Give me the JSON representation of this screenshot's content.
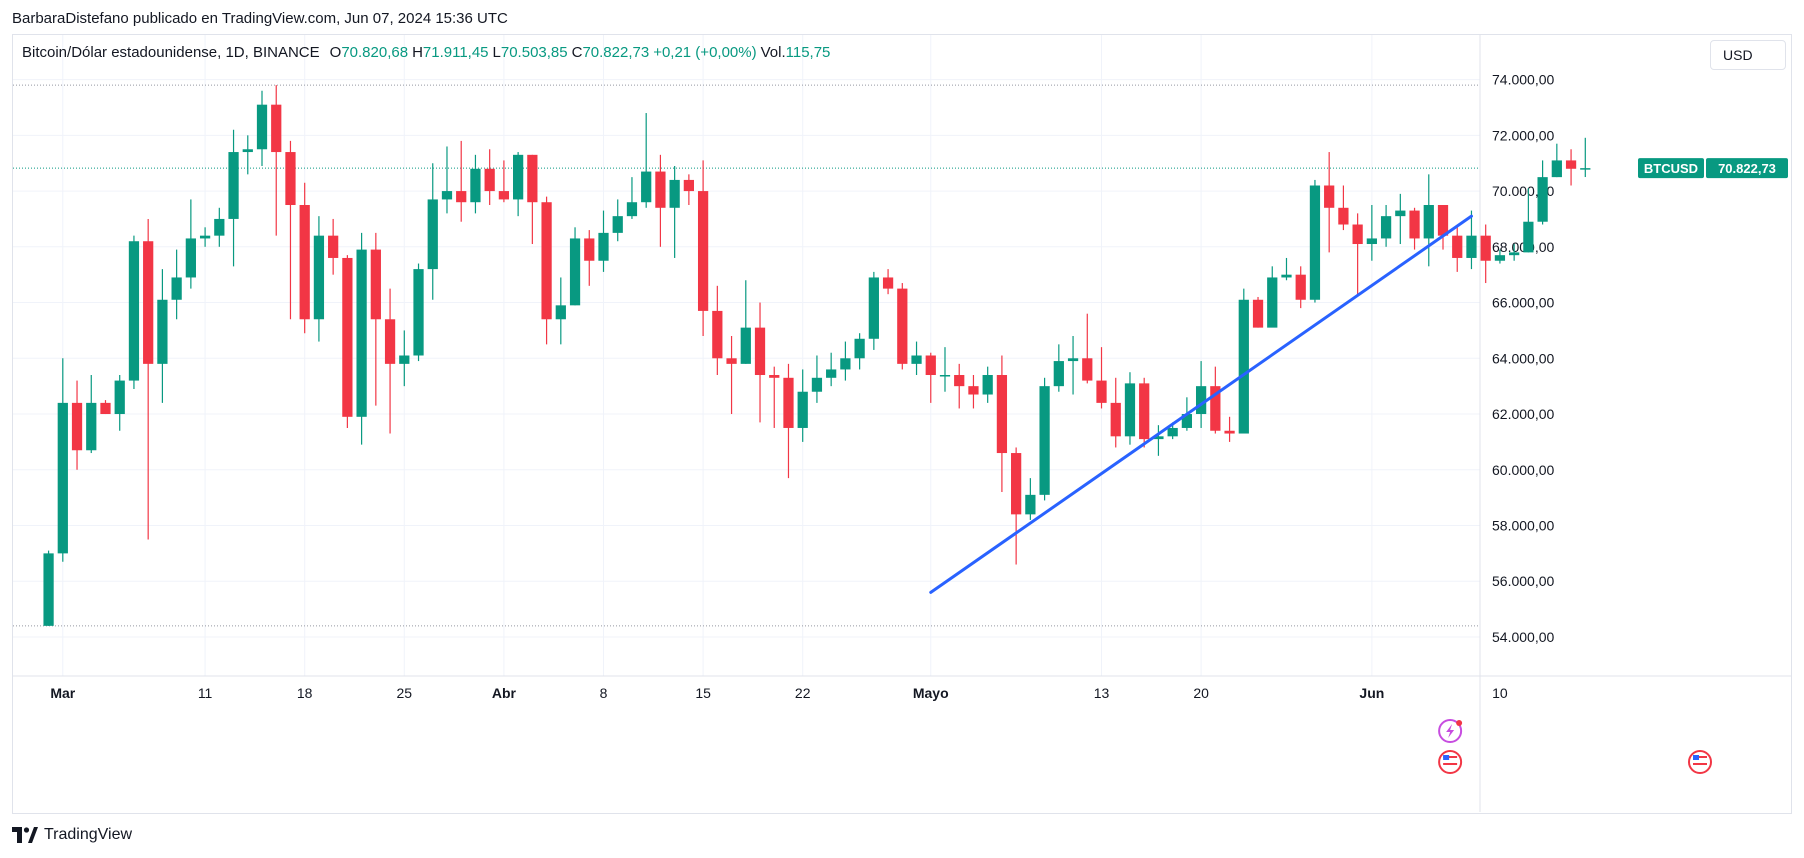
{
  "header": {
    "publish_line": "BarbaraDistefano publicado en TradingView.com, Jun 07, 2024 15:36 UTC"
  },
  "legend": {
    "symbol": "Bitcoin/Dólar estadounidense, 1D, BINANCE",
    "open_label": "O",
    "open_value": "70.820,68",
    "high_label": "H",
    "high_value": "71.911,45",
    "low_label": "L",
    "low_value": "70.503,85",
    "close_label": "C",
    "close_value": "70.822,73",
    "change": "+0,21 (+0,00%)",
    "vol_label": "Vol.",
    "vol_value": "115,75"
  },
  "currency_button": "USD",
  "price_tag": {
    "ticker": "BTCUSD",
    "price": "70.822,73"
  },
  "footer": {
    "brand": "TradingView"
  },
  "colors": {
    "up": "#089981",
    "down": "#f23645",
    "trendline": "#2962ff",
    "grid": "#f0f3fa",
    "text": "#131722"
  },
  "chart_data": {
    "type": "candlestick",
    "ylim": [
      52600,
      75600
    ],
    "x_range_days": [
      -2.5,
      100.6
    ],
    "y_ticks": [
      {
        "value": 74000,
        "label": "74.000,00"
      },
      {
        "value": 72000,
        "label": "72.000,00"
      },
      {
        "value": 70000,
        "label": "70.000,00"
      },
      {
        "value": 68000,
        "label": "68.000,00"
      },
      {
        "value": 66000,
        "label": "66.000,00"
      },
      {
        "value": 64000,
        "label": "64.000,00"
      },
      {
        "value": 62000,
        "label": "62.000,00"
      },
      {
        "value": 60000,
        "label": "60.000,00"
      },
      {
        "value": 58000,
        "label": "58.000,00"
      },
      {
        "value": 56000,
        "label": "56.000,00"
      },
      {
        "value": 54000,
        "label": "54.000,00"
      }
    ],
    "x_ticks": [
      {
        "day": 1,
        "label": "Mar",
        "bold": true
      },
      {
        "day": 11,
        "label": "11",
        "bold": false
      },
      {
        "day": 18,
        "label": "18",
        "bold": false
      },
      {
        "day": 25,
        "label": "25",
        "bold": false
      },
      {
        "day": 32,
        "label": "Abr",
        "bold": true
      },
      {
        "day": 39,
        "label": "8",
        "bold": false
      },
      {
        "day": 46,
        "label": "15",
        "bold": false
      },
      {
        "day": 53,
        "label": "22",
        "bold": false
      },
      {
        "day": 62,
        "label": "Mayo",
        "bold": true
      },
      {
        "day": 74,
        "label": "13",
        "bold": false
      },
      {
        "day": 81,
        "label": "20",
        "bold": false
      },
      {
        "day": 93,
        "label": "Jun",
        "bold": true
      },
      {
        "day": 102,
        "label": "10",
        "bold": false
      }
    ],
    "dotted_levels": [
      73800,
      54400
    ],
    "current_price": 70822.73,
    "trendline": [
      [
        62,
        55600
      ],
      [
        100,
        69100
      ]
    ],
    "candles": [
      [
        54400,
        57000,
        54400,
        57100
      ],
      [
        57000,
        62400,
        56700,
        64000
      ],
      [
        62400,
        60700,
        60000,
        63200
      ],
      [
        60700,
        62400,
        60600,
        63400
      ],
      [
        62400,
        62000,
        62000,
        62500
      ],
      [
        62000,
        63200,
        61400,
        63400
      ],
      [
        63200,
        68200,
        62900,
        68400
      ],
      [
        68200,
        63800,
        57500,
        69000
      ],
      [
        63800,
        66100,
        62400,
        67200
      ],
      [
        66100,
        66900,
        65400,
        67900
      ],
      [
        66900,
        68300,
        66500,
        69700
      ],
      [
        68300,
        68400,
        68000,
        68700
      ],
      [
        68400,
        69000,
        68000,
        69400
      ],
      [
        69000,
        71400,
        67300,
        72200
      ],
      [
        71400,
        71500,
        70600,
        72000
      ],
      [
        71500,
        73100,
        70900,
        73600
      ],
      [
        73100,
        71400,
        68400,
        73800
      ],
      [
        71400,
        69500,
        65400,
        71800
      ],
      [
        69500,
        65400,
        64900,
        70300
      ],
      [
        65400,
        68400,
        64600,
        69100
      ],
      [
        68400,
        67600,
        67000,
        69000
      ],
      [
        67600,
        61900,
        61500,
        67700
      ],
      [
        61900,
        67900,
        60900,
        68500
      ],
      [
        67900,
        65400,
        62300,
        68500
      ],
      [
        65400,
        63800,
        61300,
        66500
      ],
      [
        63800,
        64100,
        63000,
        65000
      ],
      [
        64100,
        67200,
        63900,
        67400
      ],
      [
        67200,
        69700,
        66100,
        71000
      ],
      [
        69700,
        70000,
        69200,
        71600
      ],
      [
        70000,
        69600,
        68900,
        71800
      ],
      [
        69600,
        70800,
        69200,
        71300
      ],
      [
        70800,
        70000,
        69500,
        71500
      ],
      [
        70000,
        69700,
        69600,
        71100
      ],
      [
        69700,
        71300,
        69100,
        71400
      ],
      [
        71300,
        69600,
        68100,
        71300
      ],
      [
        69600,
        65400,
        64500,
        69800
      ],
      [
        65400,
        65900,
        64500,
        66900
      ],
      [
        65900,
        68300,
        65900,
        68700
      ],
      [
        68300,
        67500,
        66600,
        68600
      ],
      [
        67500,
        68500,
        67100,
        69300
      ],
      [
        68500,
        69100,
        68200,
        69700
      ],
      [
        69100,
        69600,
        69000,
        70500
      ],
      [
        69600,
        70700,
        69400,
        72800
      ],
      [
        70700,
        69400,
        68000,
        71300
      ],
      [
        69400,
        70400,
        67600,
        70900
      ],
      [
        70400,
        70000,
        69500,
        70600
      ],
      [
        70000,
        65700,
        64800,
        71100
      ],
      [
        65700,
        64000,
        63400,
        66600
      ],
      [
        64000,
        63800,
        62000,
        64800
      ],
      [
        63800,
        65100,
        63800,
        66800
      ],
      [
        65100,
        63400,
        61700,
        66000
      ],
      [
        63400,
        63300,
        61500,
        63700
      ],
      [
        63300,
        61500,
        59700,
        63800
      ],
      [
        61500,
        62800,
        61000,
        63600
      ],
      [
        62800,
        63300,
        62400,
        64100
      ],
      [
        63300,
        63600,
        63000,
        64200
      ],
      [
        63600,
        64000,
        63200,
        64600
      ],
      [
        64000,
        64700,
        63600,
        64900
      ],
      [
        64700,
        66900,
        64300,
        67100
      ],
      [
        66900,
        66500,
        66300,
        67200
      ],
      [
        66500,
        63800,
        63600,
        66700
      ],
      [
        63800,
        64100,
        63400,
        64600
      ],
      [
        64100,
        63400,
        62400,
        64200
      ],
      [
        63400,
        63400,
        62800,
        64400
      ],
      [
        63400,
        63000,
        62200,
        63800
      ],
      [
        63000,
        62700,
        62200,
        63400
      ],
      [
        62700,
        63400,
        62400,
        63700
      ],
      [
        63400,
        60600,
        59200,
        64100
      ],
      [
        60600,
        58400,
        56600,
        60800
      ],
      [
        58400,
        59100,
        58200,
        59700
      ],
      [
        59100,
        63000,
        58900,
        63300
      ],
      [
        63000,
        63900,
        62800,
        64500
      ],
      [
        63900,
        64000,
        62700,
        64800
      ],
      [
        64000,
        63200,
        63100,
        65600
      ],
      [
        63200,
        62400,
        62200,
        64400
      ],
      [
        62400,
        61200,
        60800,
        63300
      ],
      [
        61200,
        63100,
        60900,
        63500
      ],
      [
        63100,
        61100,
        60800,
        63300
      ],
      [
        61100,
        61200,
        60500,
        61600
      ],
      [
        61200,
        61500,
        61100,
        61700
      ],
      [
        61500,
        62000,
        61400,
        62600
      ],
      [
        62000,
        63000,
        61500,
        63900
      ],
      [
        63000,
        61400,
        61300,
        63700
      ],
      [
        61400,
        61300,
        61000,
        61900
      ],
      [
        61300,
        66100,
        61300,
        66500
      ],
      [
        66100,
        65100,
        65100,
        66200
      ],
      [
        65100,
        66900,
        65200,
        67300
      ],
      [
        66900,
        67000,
        66800,
        67600
      ],
      [
        67000,
        66100,
        65800,
        67300
      ],
      [
        66100,
        70200,
        66000,
        70400
      ],
      [
        70200,
        69400,
        67800,
        71400
      ],
      [
        69400,
        68800,
        68600,
        70200
      ],
      [
        68800,
        68100,
        66300,
        69200
      ],
      [
        68100,
        68300,
        67500,
        69500
      ],
      [
        68300,
        69100,
        68000,
        69500
      ],
      [
        69100,
        69300,
        68100,
        69900
      ],
      [
        69300,
        68300,
        67900,
        69400
      ],
      [
        68300,
        69500,
        67300,
        70600
      ],
      [
        69500,
        68400,
        67900,
        69500
      ],
      [
        68400,
        67600,
        67100,
        68700
      ],
      [
        67600,
        68400,
        67200,
        69300
      ],
      [
        68400,
        67500,
        66700,
        68800
      ],
      [
        67500,
        67700,
        67400,
        67900
      ],
      [
        67700,
        67800,
        67500,
        68100
      ],
      [
        67800,
        68900,
        67800,
        70100
      ],
      [
        68900,
        70500,
        68800,
        71100
      ],
      [
        70500,
        71100,
        70500,
        71700
      ],
      [
        71100,
        70800,
        70200,
        71500
      ],
      [
        70820.68,
        70822.73,
        70503.85,
        71911.45
      ]
    ]
  }
}
